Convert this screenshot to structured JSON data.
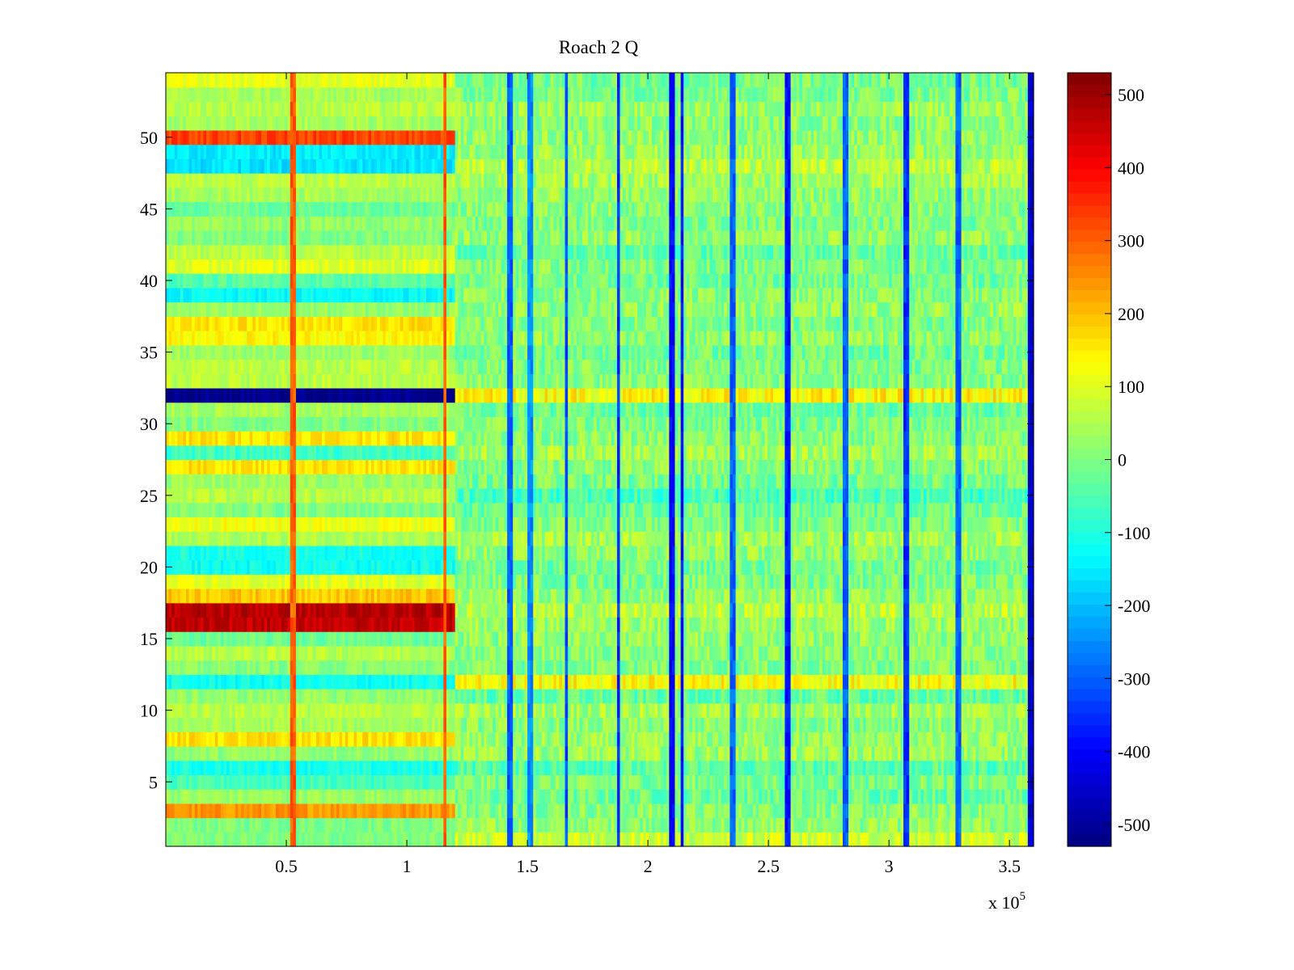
{
  "chart_data": {
    "type": "heatmap",
    "title": "Roach 2 Q",
    "xlabel": "",
    "ylabel": "",
    "x_multiplier_label": {
      "base": "x 10",
      "exponent": "5"
    },
    "xlim": [
      0,
      3.6
    ],
    "ylim": [
      0.5,
      54.5
    ],
    "x_ticks": [
      0.5,
      1,
      1.5,
      2,
      2.5,
      3,
      3.5
    ],
    "x_tick_labels": [
      "0.5",
      "1",
      "1.5",
      "2",
      "2.5",
      "3",
      "3.5"
    ],
    "y_ticks": [
      5,
      10,
      15,
      20,
      25,
      30,
      35,
      40,
      45,
      50
    ],
    "y_tick_labels": [
      "5",
      "10",
      "15",
      "20",
      "25",
      "30",
      "35",
      "40",
      "45",
      "50"
    ],
    "colorbar": {
      "colormap": "jet",
      "clim": [
        -530,
        530
      ],
      "ticks": [
        500,
        400,
        300,
        200,
        100,
        0,
        -100,
        -200,
        -300,
        -400,
        -500
      ],
      "tick_labels": [
        "500",
        "400",
        "300",
        "200",
        "100",
        "0",
        "-100",
        "-200",
        "-300",
        "-400",
        "-500"
      ]
    },
    "grid": false,
    "rows": 54,
    "segments": [
      {
        "x_range": [
          0,
          1.2
        ],
        "description_values": "rows mostly strongly banded"
      },
      {
        "x_range": [
          1.2,
          3.6
        ],
        "description_values": "rows near zero with noise"
      }
    ],
    "row_levels_early": [
      0,
      0,
      240,
      30,
      -60,
      -110,
      20,
      160,
      40,
      60,
      20,
      -120,
      10,
      60,
      -20,
      460,
      470,
      190,
      100,
      -120,
      -110,
      50,
      120,
      0,
      60,
      30,
      160,
      -70,
      160,
      0,
      40,
      -520,
      60,
      60,
      30,
      140,
      160,
      20,
      -130,
      -40,
      100,
      60,
      0,
      20,
      -20,
      40,
      60,
      -160,
      -150,
      330,
      40,
      60,
      40,
      110
    ],
    "row_levels_late": [
      80,
      20,
      10,
      -20,
      0,
      -40,
      30,
      20,
      10,
      40,
      -30,
      130,
      0,
      10,
      20,
      30,
      60,
      20,
      0,
      -10,
      20,
      40,
      0,
      -20,
      -60,
      -10,
      10,
      40,
      10,
      0,
      -20,
      140,
      10,
      0,
      -10,
      20,
      0,
      20,
      10,
      -10,
      0,
      -30,
      20,
      0,
      10,
      20,
      40,
      60,
      30,
      20,
      10,
      30,
      0,
      -10
    ],
    "vertical_streaks": [
      {
        "x": 0.53,
        "value": 300
      },
      {
        "x": 1.16,
        "value": 300
      },
      {
        "x": 1.43,
        "value": -300
      },
      {
        "x": 1.51,
        "value": -250
      },
      {
        "x": 1.66,
        "value": -320
      },
      {
        "x": 1.88,
        "value": -350
      },
      {
        "x": 2.1,
        "value": -400
      },
      {
        "x": 2.14,
        "value": -380
      },
      {
        "x": 2.35,
        "value": -300
      },
      {
        "x": 2.58,
        "value": -380
      },
      {
        "x": 2.82,
        "value": -300
      },
      {
        "x": 3.07,
        "value": -350
      },
      {
        "x": 3.29,
        "value": -300
      },
      {
        "x": 3.59,
        "value": -450
      }
    ]
  }
}
